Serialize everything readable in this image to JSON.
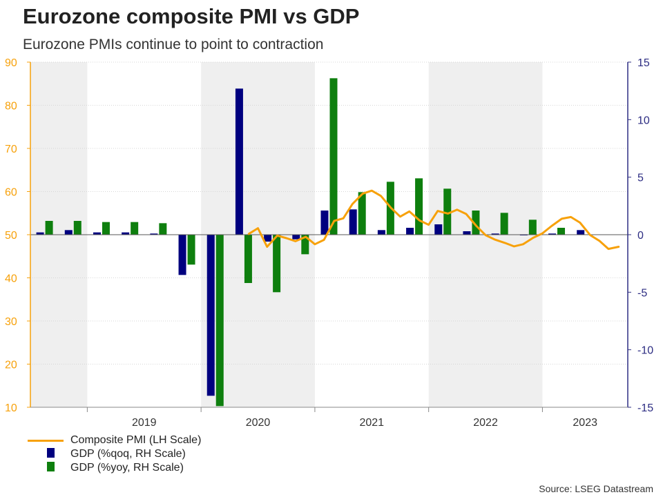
{
  "chart_data": {
    "type": "bar",
    "title": "Eurozone composite PMI vs GDP",
    "subtitle": "Eurozone PMIs continue to point to contraction",
    "left_axis": {
      "label": "LH Scale",
      "ylim": [
        10,
        90
      ],
      "ticks": [
        10,
        20,
        30,
        40,
        50,
        60,
        70,
        80,
        90
      ],
      "color": "#f7a10a"
    },
    "right_axis": {
      "label": "RH Scale",
      "ylim": [
        -15,
        15
      ],
      "ticks": [
        -15,
        -10,
        -5,
        0,
        5,
        10,
        15
      ],
      "color": "#2c2c82"
    },
    "x_range": [
      2018.5,
      2023.75
    ],
    "year_labels": [
      "2019",
      "2020",
      "2021",
      "2022",
      "2023"
    ],
    "shaded_years": [
      2019,
      2021,
      2023
    ],
    "quarters": [
      "2018Q3",
      "2018Q4",
      "2019Q1",
      "2019Q2",
      "2019Q3",
      "2019Q4",
      "2020Q1",
      "2020Q2",
      "2020Q3",
      "2020Q4",
      "2021Q1",
      "2021Q2",
      "2021Q3",
      "2021Q4",
      "2022Q1",
      "2022Q2",
      "2022Q3",
      "2022Q4",
      "2023Q1",
      "2023Q2",
      "2023Q3"
    ],
    "series": [
      {
        "name": "GDP (%qoq, RH Scale)",
        "type": "bar",
        "axis": "right",
        "color": "#00007f",
        "values": [
          0.2,
          0.4,
          0.2,
          0.2,
          0.1,
          -3.5,
          -14.0,
          12.7,
          -0.6,
          -0.4,
          2.1,
          2.2,
          0.4,
          0.6,
          0.9,
          0.3,
          0.1,
          0.0,
          0.1,
          0.4,
          null
        ]
      },
      {
        "name": "GDP (%yoy, RH Scale)",
        "type": "bar",
        "axis": "right",
        "color": "#0e7f0e",
        "values": [
          1.2,
          1.2,
          1.1,
          1.1,
          1.0,
          -2.6,
          -14.9,
          -4.2,
          -5.0,
          -1.7,
          13.6,
          3.7,
          4.6,
          4.9,
          4.0,
          2.1,
          1.9,
          1.3,
          0.6,
          null,
          null
        ]
      },
      {
        "name": "Composite PMI (LH Scale)",
        "type": "line",
        "axis": "left",
        "color": "#f7a10a",
        "x": [
          2020.42,
          2020.5,
          2020.58,
          2020.67,
          2020.75,
          2020.83,
          2020.92,
          2021.0,
          2021.08,
          2021.17,
          2021.25,
          2021.33,
          2021.42,
          2021.5,
          2021.58,
          2021.67,
          2021.75,
          2021.83,
          2021.92,
          2022.0,
          2022.08,
          2022.17,
          2022.25,
          2022.33,
          2022.42,
          2022.5,
          2022.58,
          2022.67,
          2022.75,
          2022.83,
          2022.92,
          2023.0,
          2023.08,
          2023.17,
          2023.25,
          2023.33,
          2023.42,
          2023.5,
          2023.58,
          2023.67
        ],
        "values": [
          50.2,
          51.5,
          47.2,
          49.8,
          49.2,
          48.5,
          49.5,
          47.8,
          48.8,
          53.2,
          53.8,
          57.1,
          59.5,
          60.2,
          59.0,
          56.2,
          54.2,
          55.4,
          53.3,
          52.3,
          55.5,
          54.9,
          55.8,
          54.8,
          52.0,
          49.9,
          48.9,
          48.1,
          47.3,
          47.8,
          49.3,
          50.3,
          52.0,
          53.7,
          54.1,
          52.8,
          49.9,
          48.6,
          46.7,
          47.2
        ]
      }
    ]
  },
  "legend": {
    "pmi": "Composite PMI (LH Scale)",
    "gdp_qoq": "GDP (%qoq, RH Scale)",
    "gdp_yoy": "GDP (%yoy, RH Scale)"
  },
  "source": "Source: LSEG Datastream",
  "colors": {
    "pmi": "#f7a10a",
    "gdp_qoq": "#00007f",
    "gdp_yoy": "#0e7f0e",
    "left_axis": "#f7a10a",
    "right_axis": "#2c2c82",
    "shade": "#efefef"
  }
}
